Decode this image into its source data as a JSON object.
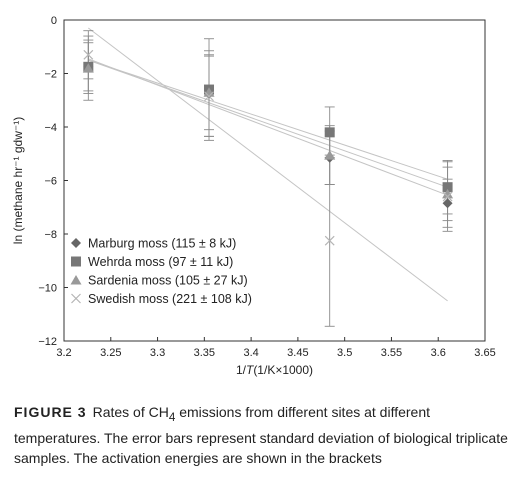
{
  "chart_data": {
    "type": "scatter",
    "xlabel_prefix": "1/",
    "xlabel_var": "T",
    "xlabel_suffix": "(1/K×1000)",
    "ylabel": "ln (methane hr⁻¹ gdw⁻¹)",
    "xlim": [
      3.2,
      3.65
    ],
    "ylim": [
      -12,
      0
    ],
    "xticks": [
      "3.2",
      "3.25",
      "3.3",
      "3.35",
      "3.4",
      "3.45",
      "3.5",
      "3.55",
      "3.6",
      "3.65"
    ],
    "yticks": [
      "0",
      "−2",
      "−4",
      "−6",
      "−8",
      "−10",
      "−12"
    ],
    "grid": false,
    "legend_position": "bottom-left",
    "series": [
      {
        "name": "Marburg moss (115 ± 8 kJ)",
        "marker": "diamond",
        "color": "#666666",
        "x": [
          3.226,
          3.355,
          3.484,
          3.61
        ],
        "y": [
          -1.75,
          -2.75,
          -5.15,
          -6.85
        ],
        "err": [
          0.9,
          1.6,
          1.0,
          0.9
        ],
        "fit": {
          "x": [
            3.226,
            3.61
          ],
          "y": [
            -1.45,
            -6.55
          ]
        }
      },
      {
        "name": "Wehrda moss (97 ± 11 kJ)",
        "marker": "square",
        "color": "#777777",
        "x": [
          3.226,
          3.355,
          3.484,
          3.61
        ],
        "y": [
          -1.75,
          -2.6,
          -4.2,
          -6.25
        ],
        "err": [
          1.0,
          1.9,
          0.95,
          1.0
        ],
        "fit": {
          "x": [
            3.226,
            3.61
          ],
          "y": [
            -1.5,
            -5.95
          ]
        }
      },
      {
        "name": "Sardenia moss (105 ± 27 kJ)",
        "marker": "triangle",
        "color": "#999999",
        "x": [
          3.226,
          3.355,
          3.484,
          3.61
        ],
        "y": [
          -1.8,
          -2.7,
          -5.05,
          -6.5
        ],
        "err": [
          1.2,
          1.4,
          1.1,
          1.0
        ],
        "fit": {
          "x": [
            3.226,
            3.61
          ],
          "y": [
            -1.5,
            -6.25
          ]
        }
      },
      {
        "name": "Swedish moss (221 ± 108 kJ)",
        "marker": "cross",
        "color": "#b5b5b5",
        "x": [
          3.226,
          3.355,
          3.484,
          3.61
        ],
        "y": [
          -1.3,
          -2.85,
          -8.25,
          -6.6
        ],
        "err": [
          0.9,
          1.5,
          3.2,
          1.3
        ],
        "fit": {
          "x": [
            3.226,
            3.61
          ],
          "y": [
            -0.3,
            -10.5
          ]
        }
      }
    ]
  },
  "caption": {
    "label": "FIGURE 3",
    "text_before": "Rates of CH",
    "subscript": "4",
    "text_after": " emissions from different sites at different temperatures. The error bars represent standard deviation of biological triplicate samples. The activation energies are shown in the brackets"
  }
}
